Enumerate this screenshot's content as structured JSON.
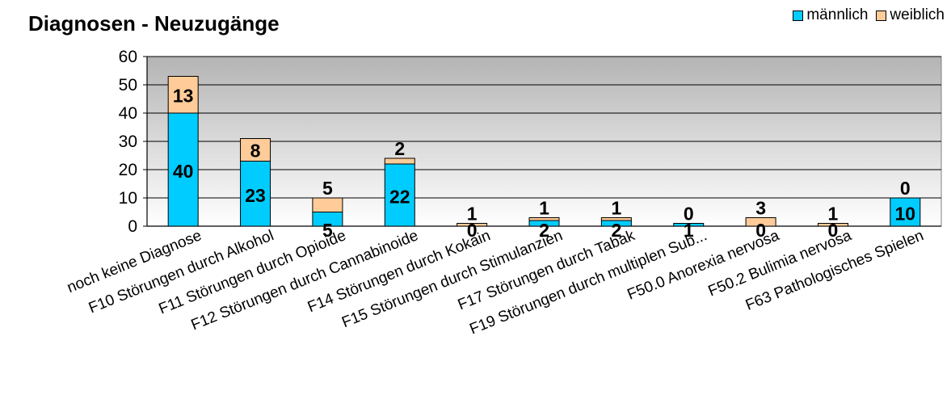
{
  "chart_data": {
    "type": "bar",
    "stacked": true,
    "title": "Diagnosen - Neuzugänge",
    "xlabel": "",
    "ylabel": "",
    "ylim": [
      0,
      60
    ],
    "yticks": [
      "0",
      "10",
      "20",
      "30",
      "40",
      "50",
      "60"
    ],
    "grid": true,
    "legend_position": "top-right",
    "categories": [
      "noch keine Diagnose",
      "F10 Störungen durch Alkohol",
      "F11 Störungen durch Opioide",
      "F12 Störungen durch Cannabinoide",
      "F14 Störungen durch Kokain",
      "F15 Störungen durch Stimulanzien",
      "F17 Störungen durch Tabak",
      "F19 Störungen durch multiplen Sub...",
      "F50.0 Anorexia nervosa",
      "F50.2 Bulimia nervosa",
      "F63 Pathologisches Spielen"
    ],
    "series": [
      {
        "name": "männlich",
        "color": "#00ccff",
        "values": [
          40,
          23,
          5,
          22,
          0,
          2,
          2,
          1,
          0,
          0,
          10
        ],
        "labels": [
          "40",
          "23",
          "5",
          "22",
          "0",
          "2",
          "2",
          "1",
          "0",
          "0",
          "10"
        ]
      },
      {
        "name": "weiblich",
        "color": "#ffcc99",
        "values": [
          13,
          8,
          5,
          2,
          1,
          1,
          1,
          0,
          3,
          1,
          0
        ],
        "labels": [
          "13",
          "8",
          "5",
          "2",
          "1",
          "1",
          "1",
          "0",
          "3",
          "1",
          "0"
        ]
      }
    ]
  }
}
